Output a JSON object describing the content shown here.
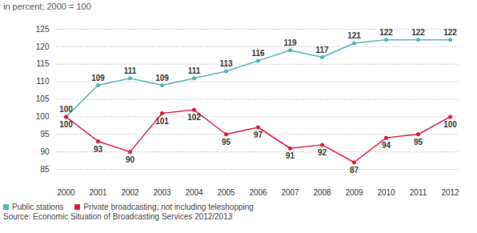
{
  "chart_data": {
    "type": "line",
    "subtitle": "in percent; 2000 = 100",
    "source": "Source: Economic Situation of Broadcasting Services 2012/2013",
    "categories": [
      "2000",
      "2001",
      "2002",
      "2003",
      "2004",
      "2005",
      "2006",
      "2007",
      "2008",
      "2009",
      "2010",
      "2011",
      "2012"
    ],
    "series": [
      {
        "name": "Public stations",
        "color": "#4fb3b1",
        "marker": "circle",
        "line_style": "solid",
        "values": [
          100,
          109,
          111,
          109,
          111,
          113,
          116,
          119,
          117,
          121,
          122,
          122,
          122
        ]
      },
      {
        "name": "Private broadcasting, not including teleshopping",
        "color": "#d9163f",
        "marker": "circle",
        "line_style": "solid",
        "values": [
          100,
          93,
          90,
          101,
          102,
          95,
          97,
          91,
          92,
          87,
          94,
          95,
          100
        ]
      }
    ],
    "ylim": [
      85,
      125
    ],
    "yticks": [
      85,
      90,
      95,
      100,
      105,
      110,
      115,
      120,
      125
    ],
    "grid": true,
    "data_labels": true,
    "legend": "bottom-left"
  }
}
